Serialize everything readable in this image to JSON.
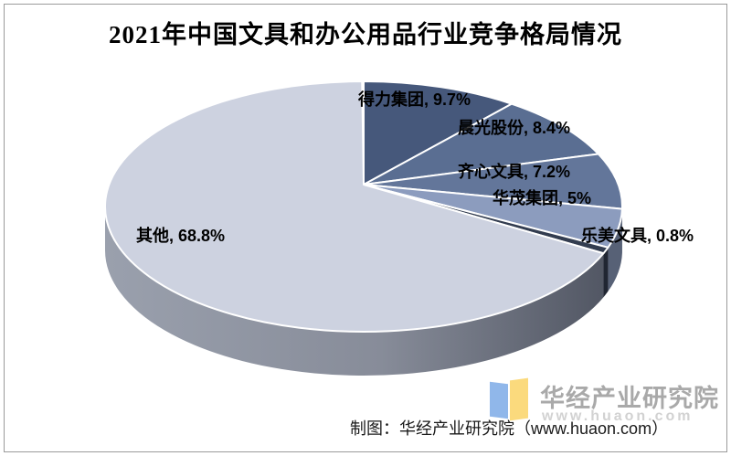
{
  "title": "2021年中国文具和办公用品行业竞争格局情况",
  "chart_data": {
    "type": "pie",
    "style": "3d",
    "title": "2021年中国文具和办公用品行业竞争格局情况",
    "unit": "%",
    "start_angle_deg": 0,
    "direction": "clockwise",
    "segments": [
      {
        "label": "得力集团",
        "value": 9.7,
        "display": "得力集团, 9.7%",
        "color": "#46587b"
      },
      {
        "label": "晨光股份",
        "value": 8.4,
        "display": "晨光股份, 8.4%",
        "color": "#5a6e92"
      },
      {
        "label": "齐心文具",
        "value": 7.2,
        "display": "齐心文具, 7.2%",
        "color": "#63769a"
      },
      {
        "label": "华茂集团",
        "value": 5,
        "display": "华茂集团, 5%",
        "color": "#8c9cbe"
      },
      {
        "label": "乐美文具",
        "value": 0.8,
        "display": "乐美文具, 0.8%",
        "color": "#333d50"
      },
      {
        "label": "其他",
        "value": 68.8,
        "display": "其他, 68.8%",
        "color": "#cdd2e0"
      }
    ]
  },
  "watermark": {
    "name": "华经产业研究院",
    "url": "www.huaon.com",
    "logo_blue": "#90b7ea",
    "logo_yellow": "#fbda7d"
  },
  "footer": {
    "credit": "制图：华经产业研究院（www.huaon.com）"
  }
}
